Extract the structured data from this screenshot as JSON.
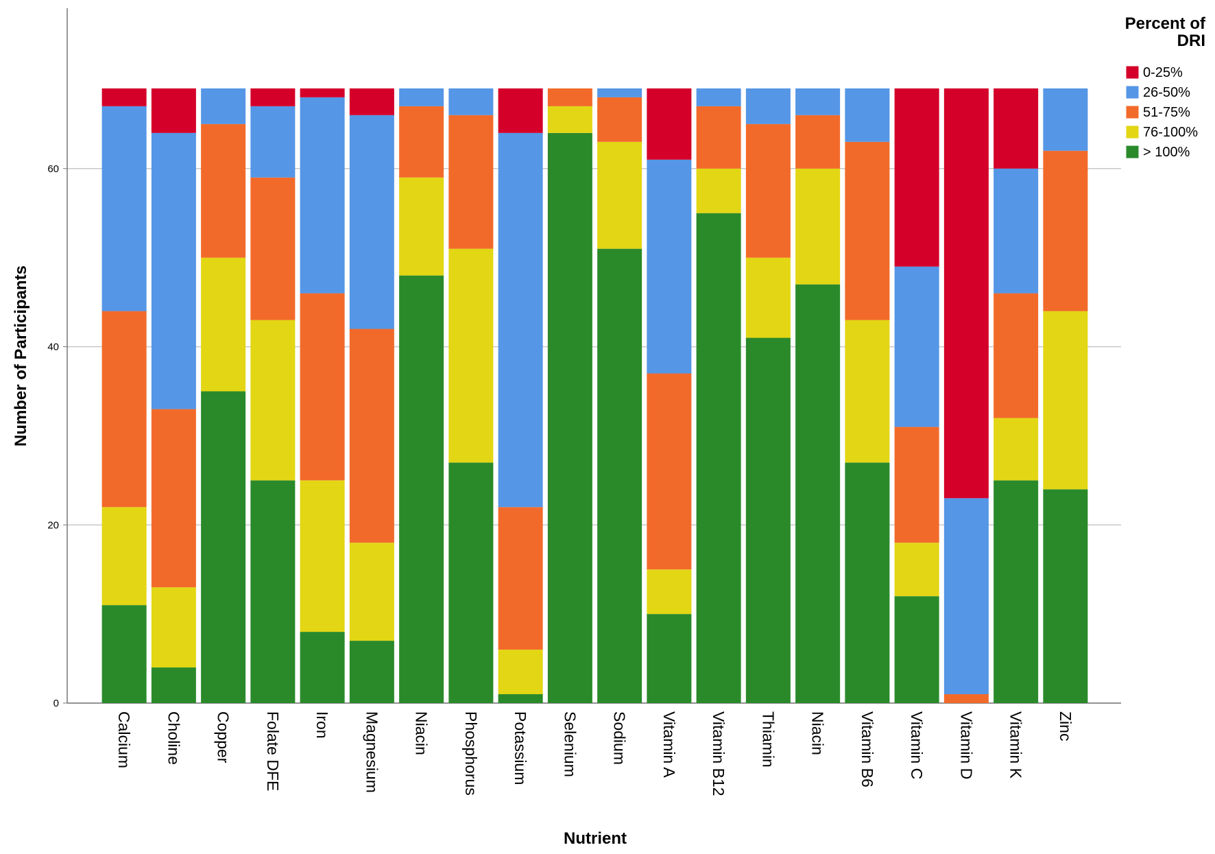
{
  "chart_data": {
    "type": "stacked_bar",
    "x_label": "Nutrient",
    "y_label": "Number of Participants",
    "legend_title": "Percent of DRI",
    "legend_position": "right",
    "categories": [
      "Calcium",
      "Choline",
      "Copper",
      "Folate DFE",
      "Iron",
      "Magnesium",
      "Niacin",
      "Phosphorus",
      "Potassium",
      "Selenium",
      "Sodium",
      "Vitamin A",
      "Vitamin B12",
      "Thiamin",
      "Niacin",
      "Vitamin B6",
      "Vitamin C",
      "Vitamin D",
      "Vitamin K",
      "Zinc"
    ],
    "series": [
      {
        "name": "0-25%",
        "color": "#d4002a",
        "values": [
          2,
          5,
          0,
          2,
          1,
          3,
          0,
          0,
          5,
          0,
          0,
          8,
          0,
          0,
          0,
          0,
          20,
          46,
          9,
          0
        ]
      },
      {
        "name": "26-50%",
        "color": "#5596e6",
        "values": [
          23,
          31,
          4,
          8,
          22,
          24,
          2,
          3,
          42,
          0,
          1,
          24,
          2,
          4,
          3,
          6,
          18,
          22,
          14,
          7
        ]
      },
      {
        "name": "51-75%",
        "color": "#f26a2a",
        "values": [
          22,
          20,
          15,
          16,
          21,
          24,
          8,
          15,
          16,
          2,
          5,
          22,
          7,
          15,
          6,
          20,
          13,
          1,
          14,
          18
        ]
      },
      {
        "name": "76-100%",
        "color": "#e3d614",
        "values": [
          11,
          9,
          15,
          18,
          17,
          11,
          11,
          24,
          5,
          3,
          12,
          5,
          5,
          9,
          13,
          16,
          6,
          0,
          7,
          20
        ]
      },
      {
        "name": "> 100%",
        "color": "#2a8a2a",
        "values": [
          11,
          4,
          35,
          25,
          8,
          7,
          48,
          27,
          1,
          64,
          51,
          10,
          55,
          41,
          47,
          27,
          12,
          0,
          25,
          24
        ]
      }
    ],
    "ylim": [
      0,
      78
    ],
    "yticks": [
      0,
      20,
      40,
      60
    ],
    "grid": true
  }
}
